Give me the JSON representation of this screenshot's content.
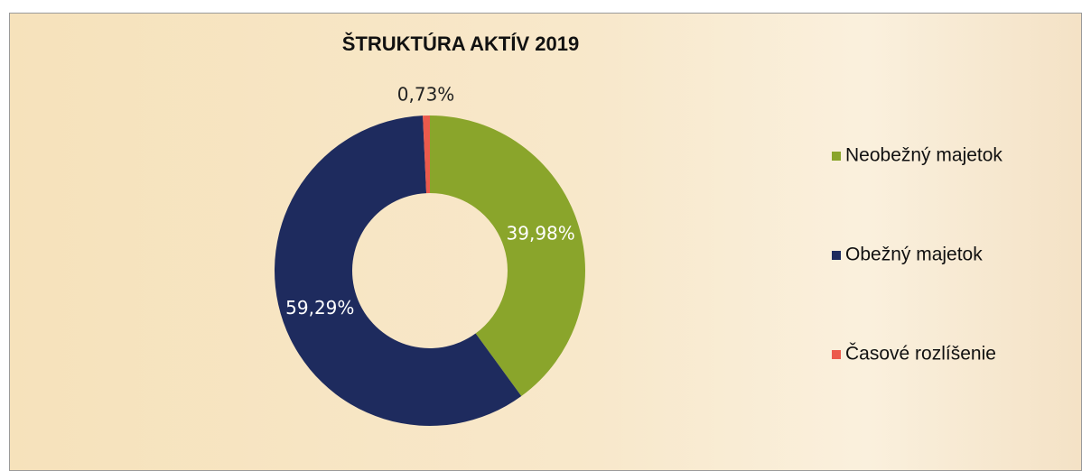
{
  "chart_data": {
    "type": "donut",
    "title": "ŠTRUKTÚRA AKTÍV 2019",
    "categories": [
      "Neobežný majetok",
      "Obežný majetok",
      "Časové rozlíšenie"
    ],
    "values": [
      39.98,
      59.29,
      0.73
    ],
    "value_labels": [
      "39,98%",
      "59,29%",
      "0,73%"
    ],
    "colors": [
      "#8aa52b",
      "#1e2b5e",
      "#ec5a4c"
    ],
    "legend": "right"
  }
}
